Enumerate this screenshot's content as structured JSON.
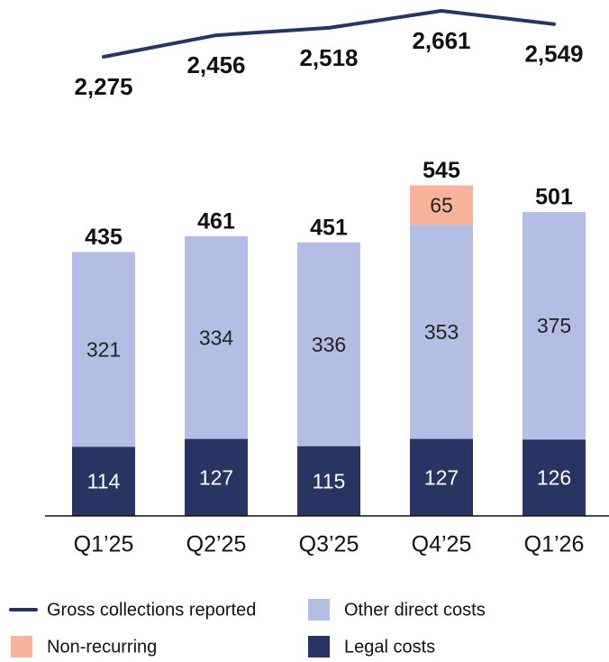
{
  "chart_data": {
    "type": "bar",
    "categories": [
      "Q1’25",
      "Q2’25",
      "Q3’25",
      "Q4’25",
      "Q1’26"
    ],
    "series": [
      {
        "name": "Legal costs",
        "color": "#283462",
        "values": [
          114,
          127,
          115,
          127,
          126
        ]
      },
      {
        "name": "Other direct costs",
        "color": "#b4bde3",
        "values": [
          321,
          334,
          336,
          353,
          375
        ]
      },
      {
        "name": "Non-recurring",
        "color": "#f7b49a",
        "values": [
          null,
          null,
          null,
          65,
          null
        ]
      },
      {
        "name": "Gross collections reported",
        "color": "#283462",
        "type": "line",
        "values": [
          2275,
          2456,
          2518,
          2661,
          2549
        ],
        "value_labels": [
          "2,275",
          "2,456",
          "2,518",
          "2,661",
          "2,549"
        ]
      }
    ],
    "totals": [
      435,
      461,
      451,
      545,
      501
    ]
  }
}
